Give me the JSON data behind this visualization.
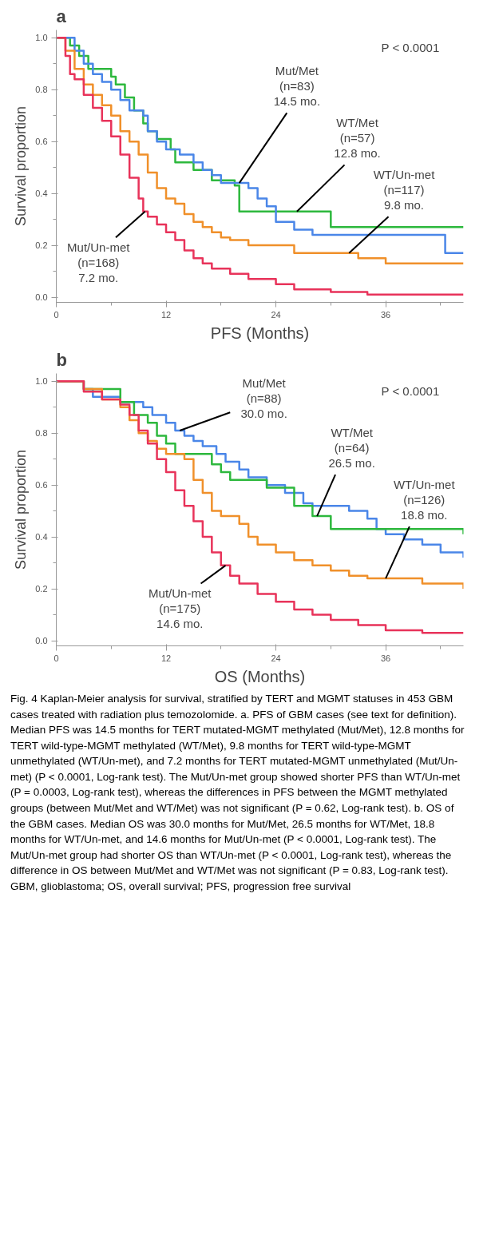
{
  "chart_data": [
    {
      "type": "step",
      "title": "a",
      "xlabel": "PFS (Months)",
      "ylabel": "Survival proportion",
      "xlim": [
        0,
        44.5
      ],
      "ylim": [
        -0.02,
        1.03
      ],
      "xticks": [
        0,
        {
          "value": 6,
          "label": null
        },
        12,
        {
          "value": 18,
          "label": null
        },
        24,
        {
          "value": 30,
          "label": null
        },
        36,
        {
          "value": 42,
          "label": null
        }
      ],
      "yticks": [
        {
          "value": 0,
          "label": "0.0"
        },
        {
          "value": 0.1,
          "label": null
        },
        0.2,
        {
          "value": 0.3,
          "label": null
        },
        0.4,
        {
          "value": 0.5,
          "label": null
        },
        0.6,
        {
          "value": 0.7,
          "label": null
        },
        0.8,
        {
          "value": 0.9,
          "label": null
        },
        {
          "value": 1,
          "label": "1.0"
        }
      ],
      "grid": false,
      "marker": "none",
      "line_style": "solid",
      "series": [
        {
          "color": "#2db83d",
          "x": [
            0,
            1.5,
            2.5,
            3.5,
            6,
            6.5,
            7.5,
            8.5,
            9.5,
            10,
            11,
            12.5,
            13,
            15,
            17,
            19.5,
            20,
            30,
            44.5
          ],
          "values": [
            1.0,
            0.97,
            0.93,
            0.88,
            0.85,
            0.82,
            0.77,
            0.72,
            0.67,
            0.64,
            0.61,
            0.57,
            0.52,
            0.49,
            0.45,
            0.43,
            0.33,
            0.27,
            0.27
          ]
        },
        {
          "color": "#4a86e8",
          "x": [
            0,
            2,
            3,
            4,
            5,
            6,
            7,
            8,
            9.5,
            10,
            11,
            12,
            13.5,
            15,
            16,
            17,
            18,
            21,
            22,
            23,
            24,
            26,
            28,
            42.5,
            44.5
          ],
          "values": [
            1.0,
            0.95,
            0.9,
            0.86,
            0.83,
            0.8,
            0.76,
            0.72,
            0.7,
            0.64,
            0.6,
            0.57,
            0.55,
            0.52,
            0.49,
            0.47,
            0.44,
            0.42,
            0.38,
            0.35,
            0.29,
            0.26,
            0.24,
            0.17,
            0.17
          ]
        },
        {
          "color": "#f0902a",
          "x": [
            0,
            1,
            2,
            3,
            4,
            5,
            6,
            7,
            8,
            9,
            10,
            11,
            12,
            13,
            14,
            15,
            16,
            17,
            18,
            19,
            21,
            26,
            33,
            36,
            44.5
          ],
          "values": [
            1.0,
            0.95,
            0.88,
            0.82,
            0.78,
            0.74,
            0.7,
            0.64,
            0.6,
            0.55,
            0.48,
            0.42,
            0.38,
            0.36,
            0.32,
            0.29,
            0.27,
            0.25,
            0.23,
            0.22,
            0.2,
            0.17,
            0.15,
            0.13,
            0.13
          ]
        },
        {
          "color": "#e8335a",
          "x": [
            0,
            1,
            1.5,
            2,
            3,
            4,
            5,
            6,
            7,
            8,
            9,
            9.5,
            10,
            11,
            12,
            13,
            14,
            15,
            16,
            17,
            19,
            21,
            24,
            26,
            30,
            34,
            44.5
          ],
          "values": [
            1.0,
            0.93,
            0.86,
            0.84,
            0.78,
            0.73,
            0.68,
            0.62,
            0.55,
            0.46,
            0.38,
            0.33,
            0.31,
            0.28,
            0.25,
            0.22,
            0.18,
            0.15,
            0.13,
            0.11,
            0.09,
            0.07,
            0.05,
            0.03,
            0.02,
            0.01,
            0.01
          ]
        }
      ],
      "annotations": [
        "P < 0.0001",
        {
          "text": "Mut/Met\n(n=83)\n14.5 mo.",
          "x": 20,
          "y": 0.44
        },
        {
          "text": "WT/Met\n(n=57)\n12.8 mo.",
          "x": 26.3,
          "y": 0.33
        },
        {
          "text": "WT/Un-met\n(n=117)\n9.8 mo.",
          "x": 32,
          "y": 0.17
        },
        {
          "text": "Mut/Un-met\n(n=168)\n7.2 mo.",
          "x": 9.7,
          "y": 0.33
        }
      ]
    },
    {
      "type": "step",
      "title": "b",
      "xlabel": "OS (Months)",
      "ylabel": "Survival proportion",
      "xlim": [
        0,
        44.5
      ],
      "ylim": [
        -0.02,
        1.03
      ],
      "xticks": [
        0,
        {
          "value": 6,
          "label": null
        },
        12,
        {
          "value": 18,
          "label": null
        },
        24,
        {
          "value": 30,
          "label": null
        },
        36,
        {
          "value": 42,
          "label": null
        }
      ],
      "yticks": [
        {
          "value": 0,
          "label": "0.0"
        },
        {
          "value": 0.1,
          "label": null
        },
        0.2,
        {
          "value": 0.3,
          "label": null
        },
        0.4,
        {
          "value": 0.5,
          "label": null
        },
        0.6,
        {
          "value": 0.7,
          "label": null
        },
        0.8,
        {
          "value": 0.9,
          "label": null
        },
        {
          "value": 1,
          "label": "1.0"
        }
      ],
      "grid": false,
      "marker": "none",
      "line_style": "solid",
      "series": [
        {
          "color": "#4a86e8",
          "x": [
            0,
            3,
            4,
            7,
            9.5,
            10.5,
            12,
            13,
            14,
            15,
            16,
            17.5,
            18.5,
            20,
            21,
            23,
            25,
            27,
            28,
            32,
            34,
            35,
            36,
            38,
            40,
            42,
            44.5
          ],
          "values": [
            1.0,
            0.97,
            0.94,
            0.92,
            0.9,
            0.87,
            0.84,
            0.81,
            0.79,
            0.77,
            0.75,
            0.72,
            0.69,
            0.66,
            0.63,
            0.6,
            0.57,
            0.53,
            0.52,
            0.5,
            0.47,
            0.43,
            0.41,
            0.39,
            0.37,
            0.34,
            0.32
          ]
        },
        {
          "color": "#2db83d",
          "x": [
            0,
            3,
            7,
            8.5,
            10,
            11,
            12,
            13,
            17,
            18,
            19,
            23,
            26,
            28,
            30,
            44.5
          ],
          "values": [
            1.0,
            0.97,
            0.92,
            0.87,
            0.84,
            0.79,
            0.76,
            0.72,
            0.68,
            0.65,
            0.62,
            0.59,
            0.52,
            0.48,
            0.43,
            0.41
          ]
        },
        {
          "color": "#f0902a",
          "x": [
            0,
            3,
            5,
            7,
            8,
            9,
            10,
            11,
            12,
            14,
            15,
            16,
            17,
            18,
            20,
            21,
            22,
            24,
            26,
            28,
            30,
            32,
            34,
            40,
            44.5
          ],
          "values": [
            1.0,
            0.97,
            0.93,
            0.9,
            0.85,
            0.8,
            0.77,
            0.74,
            0.72,
            0.7,
            0.62,
            0.57,
            0.5,
            0.48,
            0.45,
            0.4,
            0.37,
            0.34,
            0.31,
            0.29,
            0.27,
            0.25,
            0.24,
            0.22,
            0.2
          ]
        },
        {
          "color": "#e8335a",
          "x": [
            0,
            3,
            5,
            7,
            8,
            9,
            10,
            11,
            12,
            13,
            14,
            15,
            16,
            17,
            18,
            19,
            20,
            22,
            24,
            26,
            28,
            30,
            33,
            36,
            40,
            44.5
          ],
          "values": [
            1.0,
            0.96,
            0.93,
            0.91,
            0.87,
            0.81,
            0.76,
            0.7,
            0.65,
            0.58,
            0.52,
            0.46,
            0.4,
            0.34,
            0.29,
            0.25,
            0.22,
            0.18,
            0.15,
            0.12,
            0.1,
            0.08,
            0.06,
            0.04,
            0.03,
            0.03
          ]
        }
      ],
      "annotations": [
        "P < 0.0001",
        {
          "text": "Mut/Met\n(n=88)\n30.0 mo.",
          "x": 13.5,
          "y": 0.81
        },
        {
          "text": "WT/Met\n(n=64)\n26.5 mo.",
          "x": 28.5,
          "y": 0.48
        },
        {
          "text": "WT/Un-met\n(n=126)\n18.8 mo.",
          "x": 36,
          "y": 0.24
        },
        {
          "text": "Mut/Un-met\n(n=175)\n14.6 mo.",
          "x": 18.5,
          "y": 0.29
        },
        "Fig. 4 Kaplan-Meier analysis for survival, stratified by TERT and MGMT statuses in 453 GBM cases treated with radiation plus temozolomide. a. PFS of GBM cases (see text for definition). Median PFS was 14.5 months for TERT mutated-MGMT methylated (Mut/Met), 12.8 months for TERT wild-type-MGMT methylated (WT/Met), 9.8 months for TERT wild-type-MGMT unmethylated (WT/Un-met), and 7.2 months for TERT mutated-MGMT unmethylated (Mut/Un-met) (P < 0.0001, Log-rank test). The Mut/Un-met group showed shorter PFS than WT/Un-met (P = 0.0003, Log-rank test), whereas the differences in PFS between the MGMT methylated groups (between Mut/Met and WT/Met) was not significant (P = 0.62, Log-rank test). b. OS of the GBM cases. Median OS was 30.0 months for Mut/Met, 26.5 months for WT/Met, 18.8 months for WT/Un-met, and 14.6 months for Mut/Un-met (P < 0.0001, Log-rank test). The Mut/Un-met group had shorter OS than WT/Un-met (P < 0.0001, Log-rank test), whereas the difference in OS between Mut/Met and WT/Met was not significant (P = 0.83, Log-rank test). GBM, glioblastoma; OS, overall survival; PFS, progression free survival"
      ]
    }
  ]
}
